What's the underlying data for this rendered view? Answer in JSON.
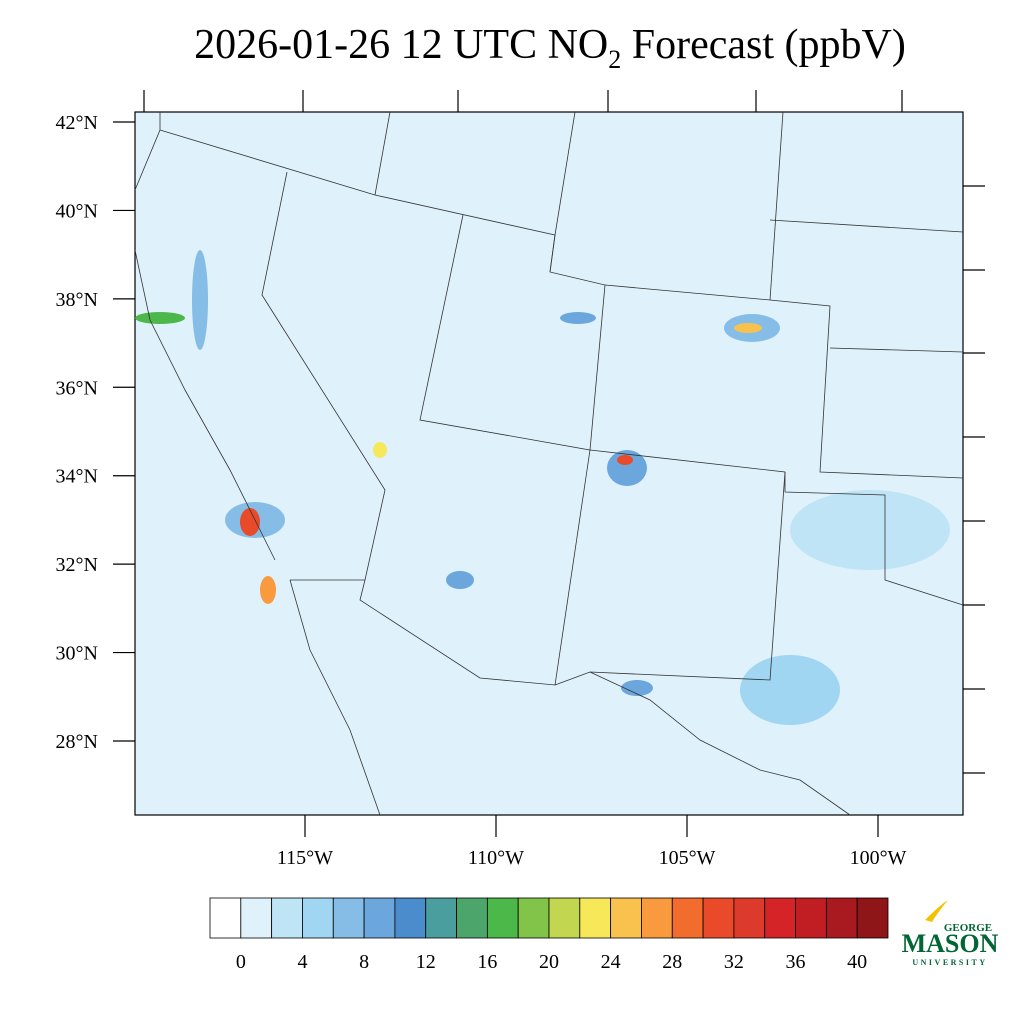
{
  "map": {
    "title": {
      "main": "2026-01-26 12 UTC NO",
      "sub": "2",
      "rest": " Forecast (ppbV)"
    },
    "lat_ticks": [
      {
        "value": 42,
        "label": "42°N"
      },
      {
        "value": 40,
        "label": "40°N"
      },
      {
        "value": 38,
        "label": "38°N"
      },
      {
        "value": 36,
        "label": "36°N"
      },
      {
        "value": 34,
        "label": "34°N"
      },
      {
        "value": 32,
        "label": "32°N"
      },
      {
        "value": 30,
        "label": "30°N"
      },
      {
        "value": 28,
        "label": "28°N"
      }
    ],
    "lon_ticks": [
      {
        "value": -115,
        "label": "115°W"
      },
      {
        "value": -110,
        "label": "110°W"
      },
      {
        "value": -105,
        "label": "105°W"
      },
      {
        "value": -100,
        "label": "100°W"
      }
    ],
    "colorbar": {
      "ticks": [
        0,
        4,
        8,
        12,
        16,
        20,
        24,
        28,
        32,
        36,
        40
      ],
      "colors": [
        "#ffffff",
        "#dff1fb",
        "#bfe4f6",
        "#a0d6f1",
        "#85bde6",
        "#6ba6dc",
        "#4a8ccc",
        "#4a9e9e",
        "#4ca66b",
        "#4cb84a",
        "#82c34a",
        "#c2d650",
        "#f7e85a",
        "#f9c24f",
        "#f89a3d",
        "#f26d2d",
        "#e84a2a",
        "#dc3a2a",
        "#d42428",
        "#c11e24",
        "#a81a20",
        "#8e1518"
      ]
    },
    "logo": {
      "top": "GEORGE",
      "main": "MASON",
      "bottom": "UNIVERSITY"
    }
  }
}
